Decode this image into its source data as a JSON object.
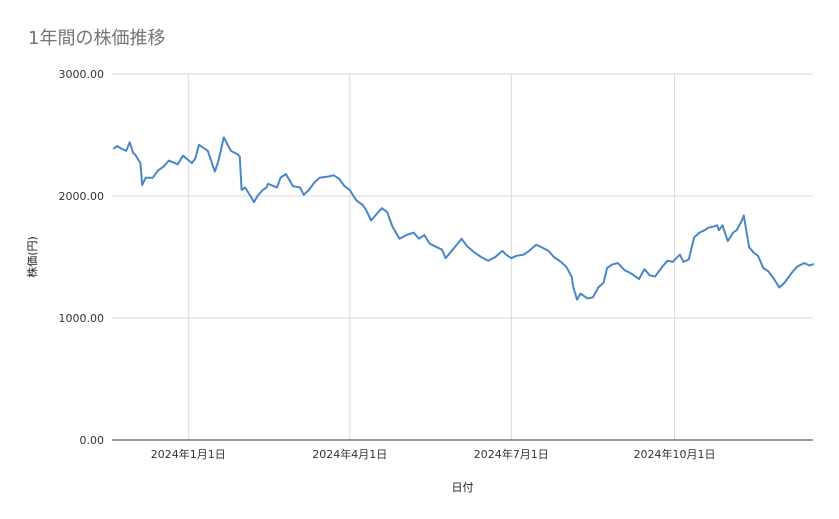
{
  "chart_data": {
    "type": "line",
    "title": "1年間の株価推移",
    "xlabel": "日付",
    "ylabel": "株価(円)",
    "ylim": [
      0,
      3000
    ],
    "y_ticks": [
      {
        "value": 0,
        "label": "0.00"
      },
      {
        "value": 1000,
        "label": "1000.00"
      },
      {
        "value": 2000,
        "label": "2000.00"
      },
      {
        "value": 3000,
        "label": "3000.00"
      }
    ],
    "xlim": [
      "2023-11-19",
      "2024-12-18"
    ],
    "x_ticks": [
      {
        "date": "2024-01-01",
        "label": "2024年1月1日"
      },
      {
        "date": "2024-04-01",
        "label": "2024年4月1日"
      },
      {
        "date": "2024-07-01",
        "label": "2024年7月1日"
      },
      {
        "date": "2024-10-01",
        "label": "2024年10月1日"
      }
    ],
    "grid": true,
    "legend": "none",
    "line_color": "#4a86c8",
    "series": [
      {
        "x": [
          "2023-11-20",
          "2023-11-22",
          "2023-11-24",
          "2023-11-27",
          "2023-11-29",
          "2023-12-01",
          "2023-12-02",
          "2023-12-05",
          "2023-12-06",
          "2023-12-08",
          "2023-12-12",
          "2023-12-15",
          "2023-12-18",
          "2023-12-21",
          "2023-12-26",
          "2023-12-29",
          "2024-01-03",
          "2024-01-05",
          "2024-01-07",
          "2024-01-12",
          "2024-01-16",
          "2024-01-18",
          "2024-01-21",
          "2024-01-25",
          "2024-01-29",
          "2024-01-30",
          "2024-01-31",
          "2024-02-02",
          "2024-02-05",
          "2024-02-07",
          "2024-02-09",
          "2024-02-12",
          "2024-02-14",
          "2024-02-15",
          "2024-02-20",
          "2024-02-22",
          "2024-02-25",
          "2024-02-29",
          "2024-03-04",
          "2024-03-06",
          "2024-03-09",
          "2024-03-12",
          "2024-03-15",
          "2024-03-20",
          "2024-03-23",
          "2024-03-26",
          "2024-03-29",
          "2024-04-01",
          "2024-04-03",
          "2024-04-05",
          "2024-04-08",
          "2024-04-10",
          "2024-04-13",
          "2024-04-16",
          "2024-04-19",
          "2024-04-22",
          "2024-04-25",
          "2024-04-29",
          "2024-05-03",
          "2024-05-07",
          "2024-05-10",
          "2024-05-13",
          "2024-05-16",
          "2024-05-20",
          "2024-05-23",
          "2024-05-25",
          "2024-05-29",
          "2024-06-03",
          "2024-06-06",
          "2024-06-10",
          "2024-06-14",
          "2024-06-18",
          "2024-06-22",
          "2024-06-26",
          "2024-06-28",
          "2024-07-01",
          "2024-07-04",
          "2024-07-08",
          "2024-07-11",
          "2024-07-15",
          "2024-07-18",
          "2024-07-22",
          "2024-07-25",
          "2024-07-29",
          "2024-08-01",
          "2024-08-04",
          "2024-08-05",
          "2024-08-07",
          "2024-08-09",
          "2024-08-13",
          "2024-08-16",
          "2024-08-19",
          "2024-08-22",
          "2024-08-24",
          "2024-08-27",
          "2024-08-30",
          "2024-09-03",
          "2024-09-06",
          "2024-09-08",
          "2024-09-11",
          "2024-09-14",
          "2024-09-17",
          "2024-09-20",
          "2024-09-24",
          "2024-09-27",
          "2024-09-30",
          "2024-10-02",
          "2024-10-04",
          "2024-10-06",
          "2024-10-09",
          "2024-10-12",
          "2024-10-15",
          "2024-10-18",
          "2024-10-20",
          "2024-10-23",
          "2024-10-25",
          "2024-10-26",
          "2024-10-28",
          "2024-10-31",
          "2024-11-03",
          "2024-11-05",
          "2024-11-08",
          "2024-11-09",
          "2024-11-12",
          "2024-11-15",
          "2024-11-17",
          "2024-11-20",
          "2024-11-23",
          "2024-11-26",
          "2024-11-29",
          "2024-12-02",
          "2024-12-06",
          "2024-12-09",
          "2024-12-13",
          "2024-12-16",
          "2024-12-18"
        ],
        "y": [
          2390,
          2410,
          2390,
          2370,
          2440,
          2350,
          2340,
          2270,
          2090,
          2150,
          2150,
          2210,
          2240,
          2290,
          2260,
          2330,
          2270,
          2310,
          2420,
          2370,
          2200,
          2290,
          2480,
          2370,
          2340,
          2320,
          2050,
          2070,
          2000,
          1950,
          2000,
          2050,
          2070,
          2100,
          2070,
          2150,
          2180,
          2080,
          2070,
          2010,
          2050,
          2110,
          2150,
          2160,
          2170,
          2140,
          2080,
          2050,
          2000,
          1960,
          1930,
          1890,
          1800,
          1850,
          1900,
          1870,
          1750,
          1650,
          1680,
          1700,
          1650,
          1680,
          1610,
          1580,
          1560,
          1490,
          1560,
          1650,
          1590,
          1540,
          1500,
          1470,
          1500,
          1550,
          1520,
          1490,
          1510,
          1520,
          1550,
          1600,
          1580,
          1550,
          1500,
          1460,
          1420,
          1340,
          1250,
          1150,
          1200,
          1160,
          1170,
          1250,
          1290,
          1410,
          1440,
          1450,
          1390,
          1370,
          1350,
          1320,
          1400,
          1350,
          1340,
          1420,
          1470,
          1460,
          1490,
          1520,
          1460,
          1480,
          1660,
          1700,
          1720,
          1740,
          1750,
          1760,
          1720,
          1760,
          1630,
          1700,
          1720,
          1800,
          1840,
          1580,
          1530,
          1510,
          1410,
          1380,
          1320,
          1250,
          1290,
          1370,
          1420,
          1450,
          1430,
          1440
        ]
      }
    ]
  }
}
